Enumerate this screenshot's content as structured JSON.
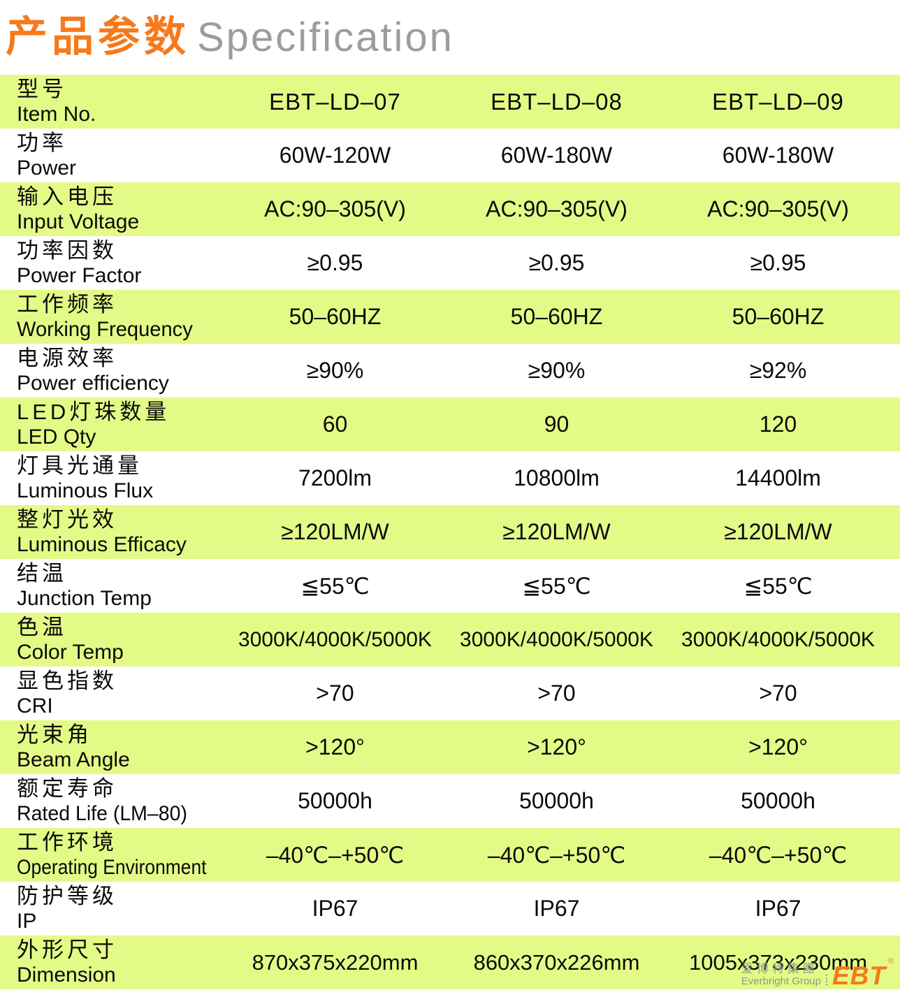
{
  "header": {
    "title_zh": "产品参数",
    "title_en": "Specification"
  },
  "table": {
    "rows": [
      {
        "key": "item-no",
        "label_zh": "型号",
        "label_en": "Item No.",
        "values": [
          "EBT–LD–07",
          "EBT–LD–08",
          "EBT–LD–09"
        ]
      },
      {
        "key": "power",
        "label_zh": "功率",
        "label_en": "Power",
        "values": [
          "60W-120W",
          "60W-180W",
          "60W-180W"
        ]
      },
      {
        "key": "input-voltage",
        "label_zh": "输入电压",
        "label_en": "Input Voltage",
        "values": [
          "AC:90–305(V)",
          "AC:90–305(V)",
          "AC:90–305(V)"
        ]
      },
      {
        "key": "power-factor",
        "label_zh": "功率因数",
        "label_en": "Power Factor",
        "values": [
          "≥0.95",
          "≥0.95",
          "≥0.95"
        ]
      },
      {
        "key": "working-frequency",
        "label_zh": "工作频率",
        "label_en": "Working Frequency",
        "values": [
          "50–60HZ",
          "50–60HZ",
          "50–60HZ"
        ]
      },
      {
        "key": "power-efficiency",
        "label_zh": "电源效率",
        "label_en": "Power efficiency",
        "values": [
          "≥90%",
          "≥90%",
          "≥92%"
        ]
      },
      {
        "key": "led-qty",
        "label_zh": "LED灯珠数量",
        "label_en": "LED Qty",
        "values": [
          "60",
          "90",
          "120"
        ]
      },
      {
        "key": "luminous-flux",
        "label_zh": "灯具光通量",
        "label_en": "Luminous Flux",
        "values": [
          "7200lm",
          "10800lm",
          "14400lm"
        ]
      },
      {
        "key": "luminous-efficacy",
        "label_zh": "整灯光效",
        "label_en": "Luminous Efficacy",
        "values": [
          "≥120LM/W",
          "≥120LM/W",
          "≥120LM/W"
        ]
      },
      {
        "key": "junction-temp",
        "label_zh": "结温",
        "label_en": "Junction Temp",
        "values": [
          "≦55℃",
          "≦55℃",
          "≦55℃"
        ]
      },
      {
        "key": "color-temp",
        "label_zh": "色温",
        "label_en": "Color Temp",
        "values": [
          "3000K/4000K/5000K",
          "3000K/4000K/5000K",
          "3000K/4000K/5000K"
        ]
      },
      {
        "key": "cri",
        "label_zh": "显色指数",
        "label_en": "CRI",
        "values": [
          ">70",
          ">70",
          ">70"
        ]
      },
      {
        "key": "beam-angle",
        "label_zh": "光束角",
        "label_en": "Beam Angle",
        "values": [
          ">120°",
          ">120°",
          ">120°"
        ]
      },
      {
        "key": "rated-life",
        "label_zh": "额定寿命",
        "label_en": "Rated Life (LM–80)",
        "values": [
          "50000h",
          "50000h",
          "50000h"
        ]
      },
      {
        "key": "operating-environment",
        "label_zh": "工作环境",
        "label_en": "Operating Environment",
        "values": [
          "–40℃–+50℃",
          "–40℃–+50℃",
          "–40℃–+50℃"
        ]
      },
      {
        "key": "ip",
        "label_zh": "防护等级",
        "label_en": "IP",
        "values": [
          "IP67",
          "IP67",
          "IP67"
        ]
      },
      {
        "key": "dimension",
        "label_zh": "外形尺寸",
        "label_en": "Dimension",
        "values": [
          "870x375x220mm",
          "860x370x226mm",
          "1005x373x230mm"
        ]
      }
    ]
  },
  "logo": {
    "company_zh": "爱博特集團",
    "company_en": "Everbright Group",
    "brand": "EBT",
    "registered_mark": "®"
  },
  "colors": {
    "accent_orange": "#F6791A",
    "row_highlight": "#E3FA86",
    "title_gray": "#9C9C9C",
    "logo_gray": "#8F9B87"
  }
}
